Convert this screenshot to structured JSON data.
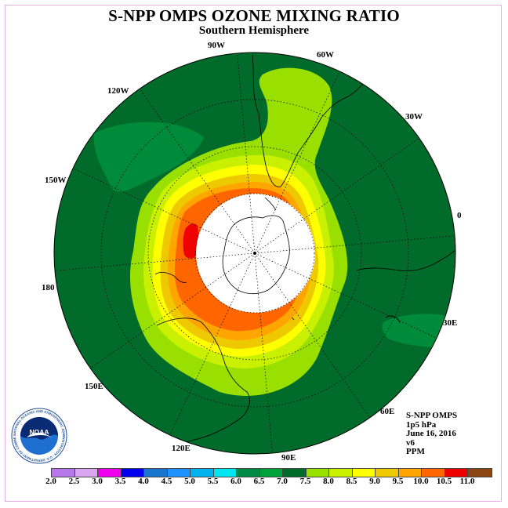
{
  "title": "S-NPP OMPS OZONE MIXING RATIO",
  "subtitle": "Southern Hemisphere",
  "longitude_labels": [
    {
      "id": "90W",
      "text": "90W"
    },
    {
      "id": "60W",
      "text": "60W"
    },
    {
      "id": "120W",
      "text": "120W"
    },
    {
      "id": "30W",
      "text": "30W"
    },
    {
      "id": "150W",
      "text": "150W"
    },
    {
      "id": "0",
      "text": "0"
    },
    {
      "id": "180",
      "text": "180"
    },
    {
      "id": "30E",
      "text": "30E"
    },
    {
      "id": "150E",
      "text": "150E"
    },
    {
      "id": "60E",
      "text": "60E"
    },
    {
      "id": "120E",
      "text": "120E"
    },
    {
      "id": "90E",
      "text": "90E"
    }
  ],
  "info": {
    "line1": "S-NPP OMPS",
    "line2": "1p5 hPa",
    "line3": "June 16, 2016",
    "line4": "v6",
    "line5": "PPM"
  },
  "logo": {
    "text": "NOAA",
    "ring_text": "NATIONAL OCEANIC AND ATMOSPHERIC ADMINISTRATION · U.S. DEPARTMENT OF COMMERCE"
  },
  "colorbar": {
    "colors": [
      "#b779ea",
      "#d9a6f0",
      "#ee00ee",
      "#0000ee",
      "#1874cd",
      "#1e90ff",
      "#00b2ee",
      "#00e5ee",
      "#008b45",
      "#00a33a",
      "#006b2a",
      "#99e000",
      "#c8f000",
      "#ffff00",
      "#eec900",
      "#ffa500",
      "#ff6600",
      "#ee0000",
      "#8b4513"
    ],
    "ticks": [
      "2.0",
      "2.5",
      "3.0",
      "3.5",
      "4.0",
      "4.5",
      "5.0",
      "5.5",
      "6.0",
      "6.5",
      "7.0",
      "7.5",
      "8.0",
      "8.5",
      "9.0",
      "9.5",
      "10.0",
      "10.5",
      "11.0"
    ]
  },
  "map_colors": {
    "background": "#006b2a",
    "band_green": "#008b3a",
    "light_green": "#99e000",
    "yellow_green": "#c8f000",
    "yellow": "#ffff00",
    "gold": "#eec900",
    "orange": "#ffa500",
    "red_orange": "#ff6600",
    "red": "#ee0000",
    "polar_night": "#ffffff"
  }
}
